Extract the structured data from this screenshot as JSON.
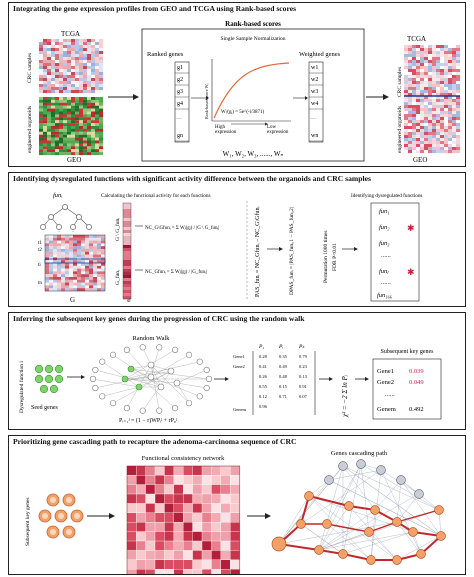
{
  "panel1": {
    "title": "Integrating the gene expression profiles from GEO and TCGA using Rank-based scores",
    "tcga": "TCGA",
    "geo": "GEO",
    "crc_samples": "CRC samples",
    "eng_organoids": "engineered organoids",
    "rank_based_scores": "Rank-based scores",
    "ssn": "Single Sample Normalization",
    "ranked_genes": "Ranked genes",
    "weighted_genes": "Weighted genes",
    "genes": [
      "g1",
      "g2",
      "g3",
      "g4",
      "gn"
    ],
    "dots": "......",
    "weights": [
      "w1",
      "w2",
      "w3",
      "w4",
      "wn"
    ],
    "ylabel": "Rank-based score Wᵢ",
    "formula": "Wᵢʲ(gᵢ) = 5e^(-i/3871)",
    "high_expr": [
      "High",
      "expression"
    ],
    "low_expr": [
      "Low",
      "expression"
    ],
    "wseq": "W₁, W₂, W₃, ......, Wₙ"
  },
  "panel2": {
    "title": "Identifying dysregulated functions with significant activity difference between the organoids and CRC samples",
    "fun_i": "funᵢ",
    "calc_label": "Calculating the functional activity for each functions",
    "g_label": "G",
    "si": "si",
    "t_labels": [
      "t1",
      "t2",
      "ti",
      "tn"
    ],
    "g_gfun": "G \\ G_funᵢ",
    "gfun": "G_funᵢ",
    "nc1": "NC_G\\Gfunᵢ = Σ Wⱼ(gⱼ) / |G \\ G_funᵢ|",
    "nc2": "NC_Gfunᵢ = Σ Wⱼ(gⱼ) / |G_funᵢ|",
    "pas": "PAS_funᵢ = NC_Gfunᵢ − NC_G\\Gfunᵢ",
    "dpas": "DPAS_funᵢ = |PAS_funᵢ,1 − PAS_funᵢ,2|",
    "perm": "Permutation 1000 times",
    "fdr": "FDR  P<0.01",
    "ident_label": "Identifying dysregulated functions",
    "funs": [
      "fun₁",
      "fun₂",
      "fun₃",
      "funⱼ",
      "fun₁₆₆"
    ],
    "fun_dots": "......"
  },
  "panel3": {
    "title": "Inferring the subsequent key genes during the progression of CRC using the random walk",
    "dysreg": "Dysregulated function i",
    "random_walk": "Random Walk",
    "seed_genes": "Seed genes",
    "rw_formula": "Pᵢ₊₁ʲ = (1 − r)WPᵢʲ + rP₀ʲ",
    "matrix_cols": [
      "P₁",
      "Pᵢ",
      "Pₖ"
    ],
    "matrix_rows": [
      "Gene1",
      "Gene2",
      "Genem"
    ],
    "matrix_vals": [
      "0.28",
      "0.35",
      "0.79",
      "0.41",
      "0.49",
      "0.23",
      "0.26",
      "0.48",
      "0.13",
      "0.55",
      "0.15",
      "0.91",
      "0.12",
      "0.71",
      "0.07",
      "0.96"
    ],
    "chi": "χ² = −2 Σ ln Pᵢ",
    "subseq_title": "Subsequent key genes",
    "key_genes": [
      {
        "name": "Gene1",
        "val": "0.039",
        "color": "#d0204a"
      },
      {
        "name": "Gene2",
        "val": "0.049",
        "color": "#d0204a"
      },
      {
        "name": "Genem",
        "val": "0.492",
        "color": "#222222"
      }
    ],
    "dots": "......"
  },
  "panel4": {
    "title": "Prioritizing gene cascading path to recapture the adenoma-carcinoma sequence of CRC",
    "subseq_vertical": "Subsequent key genes",
    "fcn": "Functional consistency network",
    "gcp": "Genes cascading path"
  }
}
